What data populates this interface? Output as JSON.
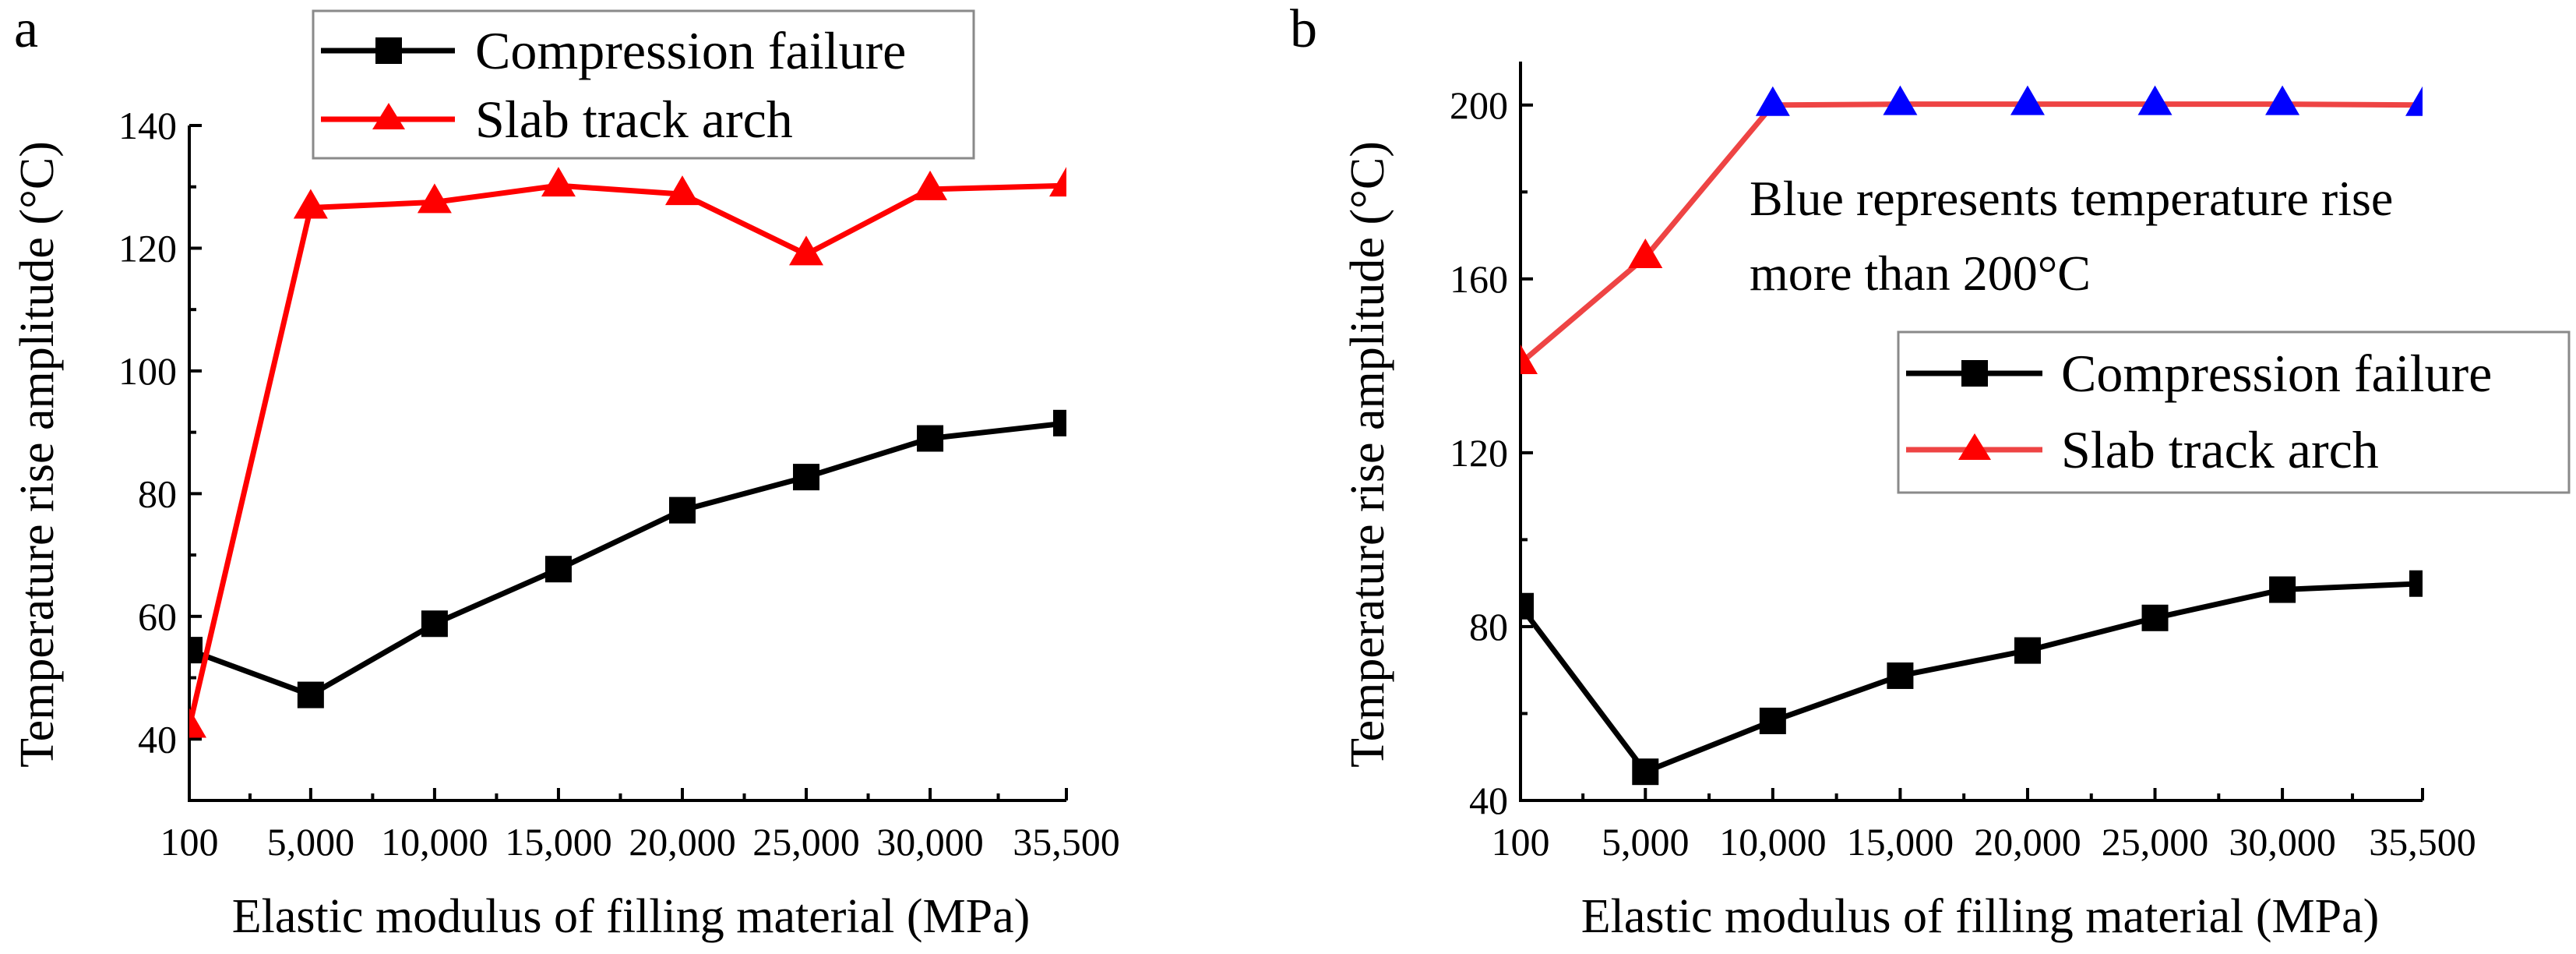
{
  "chart_data": [
    {
      "panel_label": "a",
      "type": "line",
      "title": "",
      "xlabel": "Elastic modulus of filling material (MPa)",
      "ylabel": "Temperature rise amplitude (°C)",
      "x": [
        100,
        5000,
        10000,
        15000,
        20000,
        25000,
        30000,
        35500
      ],
      "x_tick_labels": [
        "100",
        "5,000",
        "10,000",
        "15,000",
        "20,000",
        "25,000",
        "30,000",
        "35,500"
      ],
      "xlim": [
        100,
        35500
      ],
      "ylim": [
        30,
        140
      ],
      "y_ticks": [
        40,
        60,
        80,
        100,
        120,
        140
      ],
      "y_tick_labels": [
        "40",
        "60",
        "80",
        "100",
        "120",
        "140"
      ],
      "grid": false,
      "legend_position": "top-center",
      "series": [
        {
          "name": "Compression failure",
          "color": "#000000",
          "marker": "square",
          "values": [
            54.5,
            47.2,
            58.8,
            67.7,
            77.3,
            82.7,
            89.0,
            91.5
          ]
        },
        {
          "name": "Slab track arch",
          "color": "#ff0000",
          "marker": "triangle",
          "values": [
            42.0,
            126.6,
            127.5,
            130.2,
            128.8,
            119.0,
            129.6,
            130.2
          ]
        }
      ]
    },
    {
      "panel_label": "b",
      "type": "line",
      "title": "",
      "xlabel": "Elastic modulus of filling material (MPa)",
      "ylabel": "Temperature rise amplitude (°C)",
      "x": [
        100,
        5000,
        10000,
        15000,
        20000,
        25000,
        30000,
        35500
      ],
      "x_tick_labels": [
        "100",
        "5,000",
        "10,000",
        "15,000",
        "20,000",
        "25,000",
        "30,000",
        "35,500"
      ],
      "xlim": [
        100,
        35500
      ],
      "ylim": [
        40,
        210
      ],
      "y_ticks": [
        40,
        80,
        120,
        160,
        200
      ],
      "y_tick_labels": [
        "40",
        "80",
        "120",
        "160",
        "200"
      ],
      "grid": false,
      "legend_position": "middle-right",
      "annotation": [
        "Blue represents temperature rise",
        "more than 200°C"
      ],
      "series": [
        {
          "name": "Compression failure",
          "color": "#000000",
          "marker": "square",
          "values": [
            84.7,
            46.6,
            58.3,
            68.7,
            74.5,
            82.0,
            88.5,
            89.9
          ]
        },
        {
          "name": "Slab track arch",
          "color": "#ee4444",
          "marker_color": "#ff0000",
          "highlight_color": "#0000ff",
          "highlight_threshold": 200,
          "marker": "triangle",
          "values": [
            140.6,
            165.0,
            200.0,
            200.2,
            200.2,
            200.2,
            200.2,
            200.0
          ],
          "highlighted": [
            false,
            false,
            true,
            true,
            true,
            true,
            true,
            true
          ]
        }
      ]
    }
  ]
}
